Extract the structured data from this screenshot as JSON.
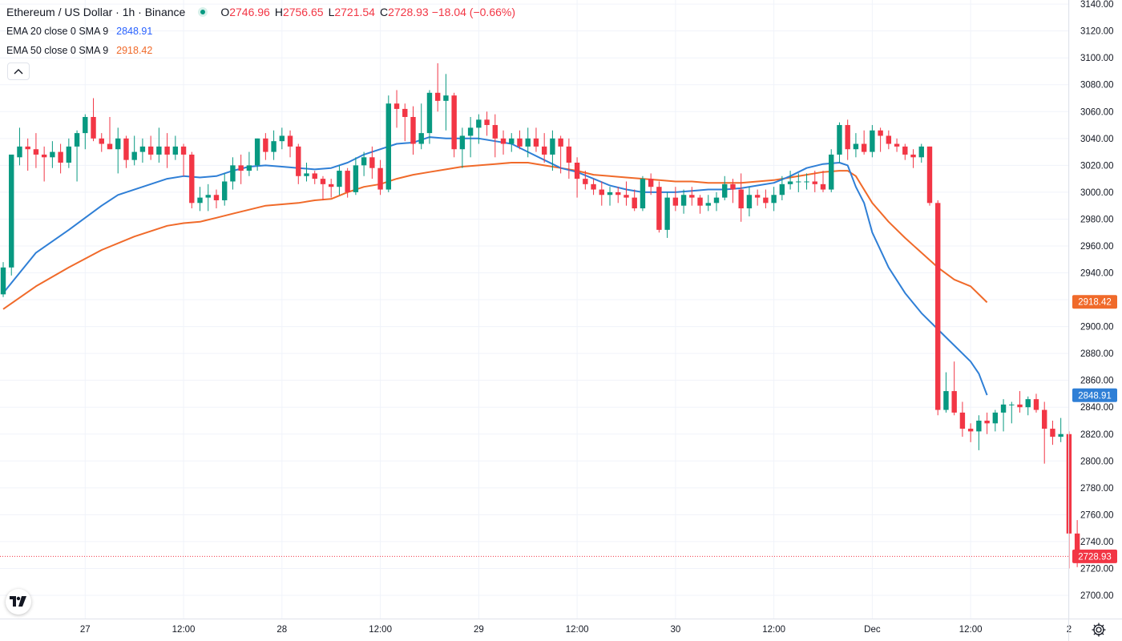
{
  "header": {
    "symbol_title": "Ethereum / US Dollar · 1h · Binance",
    "ohlc": {
      "o_label": "O",
      "o_value": "2746.96",
      "h_label": "H",
      "h_value": "2756.65",
      "l_label": "L",
      "l_value": "2721.54",
      "c_label": "C",
      "c_value": "2728.93",
      "change": "−18.04 (−0.66%)"
    }
  },
  "indicators": {
    "ema20": {
      "label": "EMA 20 close 0 SMA 9",
      "value": "2848.91",
      "color": "#2962ff"
    },
    "ema50": {
      "label": "EMA 50 close 0 SMA 9",
      "value": "2918.42",
      "color": "#f7525f"
    }
  },
  "icons": {
    "collapse": "chevron-up-icon",
    "logo": "tradingview-logo",
    "settings": "gear-icon"
  },
  "chart_data": {
    "type": "candlestick",
    "title": "Ethereum / US Dollar · 1h · Binance",
    "up_color": "#089981",
    "down_color": "#f23645",
    "ema20_color": "#2f7fd6",
    "ema50_color": "#f06a2a",
    "ylim": [
      2690,
      3140
    ],
    "y_ticks": [
      "2700.00",
      "2720.00",
      "2740.00",
      "2760.00",
      "2780.00",
      "2800.00",
      "2820.00",
      "2840.00",
      "2860.00",
      "2880.00",
      "2900.00",
      "2920.00",
      "2940.00",
      "2960.00",
      "2980.00",
      "3000.00",
      "3020.00",
      "3040.00",
      "3060.00",
      "3080.00",
      "3100.00",
      "3120.00",
      "3140.00"
    ],
    "x_ticks": [
      {
        "label": "27",
        "hour": 10
      },
      {
        "label": "12:00",
        "hour": 22
      },
      {
        "label": "28",
        "hour": 34
      },
      {
        "label": "12:00",
        "hour": 46
      },
      {
        "label": "29",
        "hour": 58
      },
      {
        "label": "12:00",
        "hour": 70
      },
      {
        "label": "30",
        "hour": 82
      },
      {
        "label": "12:00",
        "hour": 94
      },
      {
        "label": "Dec",
        "hour": 106
      },
      {
        "label": "12:00",
        "hour": 118
      },
      {
        "label": "2",
        "hour": 130
      }
    ],
    "candles": [
      [
        2924,
        2948,
        2922,
        2944
      ],
      [
        2944,
        3028,
        2938,
        3028
      ],
      [
        3026,
        3048,
        3020,
        3034
      ],
      [
        3034,
        3040,
        3016,
        3032
      ],
      [
        3032,
        3044,
        3018,
        3028
      ],
      [
        3028,
        3034,
        3008,
        3026
      ],
      [
        3026,
        3038,
        3018,
        3030
      ],
      [
        3030,
        3036,
        3014,
        3022
      ],
      [
        3022,
        3040,
        3018,
        3034
      ],
      [
        3034,
        3046,
        3008,
        3044
      ],
      [
        3044,
        3058,
        3032,
        3056
      ],
      [
        3056,
        3070,
        3038,
        3040
      ],
      [
        3040,
        3044,
        3030,
        3036
      ],
      [
        3036,
        3056,
        3032,
        3032
      ],
      [
        3032,
        3048,
        3014,
        3040
      ],
      [
        3040,
        3042,
        3018,
        3024
      ],
      [
        3024,
        3042,
        3020,
        3030
      ],
      [
        3030,
        3040,
        3022,
        3034
      ],
      [
        3034,
        3042,
        3024,
        3028
      ],
      [
        3028,
        3048,
        3022,
        3034
      ],
      [
        3034,
        3044,
        3018,
        3028
      ],
      [
        3028,
        3042,
        3024,
        3034
      ],
      [
        3034,
        3036,
        3012,
        3028
      ],
      [
        3028,
        3030,
        2988,
        2992
      ],
      [
        2992,
        3004,
        2986,
        2996
      ],
      [
        2996,
        3006,
        2986,
        2998
      ],
      [
        2998,
        3002,
        2988,
        2994
      ],
      [
        2994,
        3014,
        2990,
        3008
      ],
      [
        3008,
        3026,
        3002,
        3020
      ],
      [
        3020,
        3028,
        3006,
        3016
      ],
      [
        3016,
        3030,
        3012,
        3020
      ],
      [
        3020,
        3040,
        3016,
        3040
      ],
      [
        3040,
        3044,
        3024,
        3030
      ],
      [
        3030,
        3046,
        3024,
        3038
      ],
      [
        3038,
        3048,
        3032,
        3042
      ],
      [
        3042,
        3046,
        3026,
        3034
      ],
      [
        3034,
        3036,
        3006,
        3012
      ],
      [
        3012,
        3022,
        3008,
        3014
      ],
      [
        3014,
        3016,
        3006,
        3010
      ],
      [
        3010,
        3012,
        2994,
        3006
      ],
      [
        3006,
        3010,
        2996,
        3004
      ],
      [
        3004,
        3020,
        2998,
        3016
      ],
      [
        3016,
        3018,
        2996,
        3000
      ],
      [
        3000,
        3026,
        2998,
        3020
      ],
      [
        3020,
        3030,
        3012,
        3026
      ],
      [
        3026,
        3034,
        3010,
        3018
      ],
      [
        3018,
        3024,
        2998,
        3002
      ],
      [
        3002,
        3072,
        3000,
        3066
      ],
      [
        3066,
        3076,
        3048,
        3062
      ],
      [
        3062,
        3066,
        3038,
        3056
      ],
      [
        3056,
        3064,
        3028,
        3036
      ],
      [
        3036,
        3066,
        3032,
        3044
      ],
      [
        3044,
        3076,
        3036,
        3074
      ],
      [
        3074,
        3096,
        3060,
        3068
      ],
      [
        3068,
        3088,
        3046,
        3072
      ],
      [
        3072,
        3074,
        3026,
        3032
      ],
      [
        3032,
        3048,
        3018,
        3042
      ],
      [
        3042,
        3056,
        3026,
        3048
      ],
      [
        3048,
        3058,
        3036,
        3054
      ],
      [
        3054,
        3060,
        3042,
        3050
      ],
      [
        3050,
        3058,
        3026,
        3040
      ],
      [
        3040,
        3046,
        3028,
        3036
      ],
      [
        3036,
        3044,
        3030,
        3040
      ],
      [
        3040,
        3046,
        3032,
        3034
      ],
      [
        3034,
        3048,
        3026,
        3040
      ],
      [
        3040,
        3048,
        3030,
        3034
      ],
      [
        3034,
        3044,
        3022,
        3028
      ],
      [
        3028,
        3046,
        3016,
        3040
      ],
      [
        3040,
        3042,
        3014,
        3034
      ],
      [
        3034,
        3040,
        3010,
        3022
      ],
      [
        3022,
        3026,
        2996,
        3010
      ],
      [
        3010,
        3016,
        3002,
        3006
      ],
      [
        3006,
        3010,
        2998,
        3002
      ],
      [
        3002,
        3008,
        2990,
        2998
      ],
      [
        2998,
        3004,
        2990,
        3000
      ],
      [
        3000,
        3004,
        2992,
        2998
      ],
      [
        2998,
        3008,
        2990,
        2996
      ],
      [
        2996,
        3002,
        2986,
        2988
      ],
      [
        2988,
        3012,
        2986,
        3010
      ],
      [
        3010,
        3014,
        2998,
        3004
      ],
      [
        3004,
        3008,
        2970,
        2972
      ],
      [
        2972,
        3000,
        2966,
        2996
      ],
      [
        2996,
        3004,
        2986,
        2990
      ],
      [
        2990,
        3002,
        2984,
        2998
      ],
      [
        2998,
        3004,
        2990,
        2996
      ],
      [
        2996,
        2998,
        2984,
        2990
      ],
      [
        2990,
        2998,
        2986,
        2992
      ],
      [
        2992,
        3000,
        2986,
        2996
      ],
      [
        2996,
        3012,
        2994,
        3006
      ],
      [
        3006,
        3010,
        2992,
        3002
      ],
      [
        3002,
        3014,
        2978,
        2988
      ],
      [
        2988,
        3004,
        2982,
        2998
      ],
      [
        2998,
        3002,
        2990,
        2996
      ],
      [
        2996,
        3002,
        2988,
        2992
      ],
      [
        2992,
        3004,
        2986,
        2998
      ],
      [
        2998,
        3012,
        2994,
        3006
      ],
      [
        3006,
        3016,
        3002,
        3008
      ],
      [
        3008,
        3014,
        3000,
        3008
      ],
      [
        3008,
        3014,
        3002,
        3008
      ],
      [
        3008,
        3016,
        3000,
        3006
      ],
      [
        3006,
        3016,
        3000,
        3002
      ],
      [
        3002,
        3032,
        3000,
        3028
      ],
      [
        3028,
        3052,
        3022,
        3050
      ],
      [
        3050,
        3054,
        3024,
        3032
      ],
      [
        3032,
        3044,
        3026,
        3036
      ],
      [
        3036,
        3046,
        3028,
        3030
      ],
      [
        3030,
        3050,
        3026,
        3046
      ],
      [
        3046,
        3048,
        3030,
        3042
      ],
      [
        3042,
        3046,
        3032,
        3036
      ],
      [
        3036,
        3040,
        3030,
        3034
      ],
      [
        3034,
        3036,
        3024,
        3028
      ],
      [
        3028,
        3032,
        3018,
        3026
      ],
      [
        3026,
        3036,
        3022,
        3034
      ],
      [
        3034,
        3034,
        2990,
        2992
      ],
      [
        2992,
        2994,
        2834,
        2838
      ],
      [
        2838,
        2866,
        2836,
        2852
      ],
      [
        2852,
        2874,
        2834,
        2836
      ],
      [
        2836,
        2844,
        2818,
        2824
      ],
      [
        2824,
        2828,
        2814,
        2822
      ],
      [
        2822,
        2834,
        2808,
        2830
      ],
      [
        2830,
        2836,
        2820,
        2828
      ],
      [
        2828,
        2838,
        2822,
        2836
      ],
      [
        2836,
        2846,
        2822,
        2842
      ],
      [
        2842,
        2844,
        2828,
        2842
      ],
      [
        2842,
        2852,
        2836,
        2840
      ],
      [
        2840,
        2848,
        2834,
        2846
      ],
      [
        2846,
        2850,
        2836,
        2838
      ],
      [
        2838,
        2844,
        2798,
        2824
      ],
      [
        2824,
        2830,
        2812,
        2818
      ],
      [
        2818,
        2832,
        2814,
        2820
      ],
      [
        2820,
        2822,
        2720,
        2746
      ],
      [
        2746,
        2756,
        2721,
        2729
      ]
    ],
    "ema20": [
      [
        0,
        2925
      ],
      [
        4,
        2955
      ],
      [
        8,
        2972
      ],
      [
        12,
        2990
      ],
      [
        14,
        2998
      ],
      [
        17,
        3004
      ],
      [
        20,
        3010
      ],
      [
        22,
        3012
      ],
      [
        24,
        3011
      ],
      [
        26,
        3012
      ],
      [
        28,
        3016
      ],
      [
        30,
        3019
      ],
      [
        32,
        3020
      ],
      [
        34,
        3019
      ],
      [
        36,
        3018
      ],
      [
        38,
        3017
      ],
      [
        40,
        3018
      ],
      [
        42,
        3022
      ],
      [
        44,
        3028
      ],
      [
        46,
        3032
      ],
      [
        48,
        3036
      ],
      [
        50,
        3037
      ],
      [
        52,
        3041
      ],
      [
        54,
        3040
      ],
      [
        56,
        3040
      ],
      [
        58,
        3040
      ],
      [
        60,
        3038
      ],
      [
        62,
        3036
      ],
      [
        64,
        3030
      ],
      [
        66,
        3024
      ],
      [
        68,
        3018
      ],
      [
        70,
        3015
      ],
      [
        72,
        3010
      ],
      [
        74,
        3005
      ],
      [
        76,
        3002
      ],
      [
        78,
        3000
      ],
      [
        80,
        3000
      ],
      [
        82,
        3000
      ],
      [
        84,
        3001
      ],
      [
        86,
        3002
      ],
      [
        88,
        3002
      ],
      [
        90,
        3003
      ],
      [
        92,
        3005
      ],
      [
        94,
        3007
      ],
      [
        96,
        3012
      ],
      [
        98,
        3018
      ],
      [
        100,
        3021
      ],
      [
        102,
        3022
      ],
      [
        103,
        3020
      ],
      [
        104,
        3004
      ],
      [
        105,
        2992
      ],
      [
        106,
        2970
      ],
      [
        108,
        2944
      ],
      [
        110,
        2925
      ],
      [
        112,
        2910
      ],
      [
        114,
        2898
      ],
      [
        116,
        2886
      ],
      [
        118,
        2874
      ],
      [
        119,
        2865
      ],
      [
        120,
        2849
      ]
    ],
    "ema50": [
      [
        0,
        2913
      ],
      [
        4,
        2930
      ],
      [
        8,
        2944
      ],
      [
        12,
        2957
      ],
      [
        16,
        2967
      ],
      [
        20,
        2975
      ],
      [
        22,
        2977
      ],
      [
        24,
        2978
      ],
      [
        26,
        2981
      ],
      [
        28,
        2984
      ],
      [
        30,
        2987
      ],
      [
        32,
        2990
      ],
      [
        34,
        2991
      ],
      [
        36,
        2992
      ],
      [
        38,
        2994
      ],
      [
        40,
        2995
      ],
      [
        42,
        3000
      ],
      [
        44,
        3004
      ],
      [
        46,
        3006
      ],
      [
        48,
        3010
      ],
      [
        50,
        3013
      ],
      [
        52,
        3015
      ],
      [
        54,
        3017
      ],
      [
        56,
        3019
      ],
      [
        58,
        3020
      ],
      [
        60,
        3021
      ],
      [
        62,
        3022
      ],
      [
        64,
        3022
      ],
      [
        66,
        3020
      ],
      [
        68,
        3018
      ],
      [
        70,
        3016
      ],
      [
        72,
        3013
      ],
      [
        74,
        3012
      ],
      [
        76,
        3011
      ],
      [
        78,
        3010
      ],
      [
        80,
        3009
      ],
      [
        82,
        3008
      ],
      [
        84,
        3008
      ],
      [
        86,
        3007
      ],
      [
        88,
        3007
      ],
      [
        90,
        3007
      ],
      [
        92,
        3008
      ],
      [
        94,
        3009
      ],
      [
        96,
        3011
      ],
      [
        98,
        3013
      ],
      [
        100,
        3015
      ],
      [
        102,
        3016
      ],
      [
        103,
        3016
      ],
      [
        104,
        3012
      ],
      [
        106,
        2992
      ],
      [
        108,
        2978
      ],
      [
        110,
        2966
      ],
      [
        112,
        2955
      ],
      [
        114,
        2944
      ],
      [
        116,
        2935
      ],
      [
        118,
        2930
      ],
      [
        119,
        2924
      ],
      [
        120,
        2918
      ]
    ],
    "last_price_label": "2728.93",
    "ema20_label": "2848.91",
    "ema50_label": "2918.42",
    "grid": true,
    "price_axis": "right",
    "last_price_line": "dotted"
  }
}
